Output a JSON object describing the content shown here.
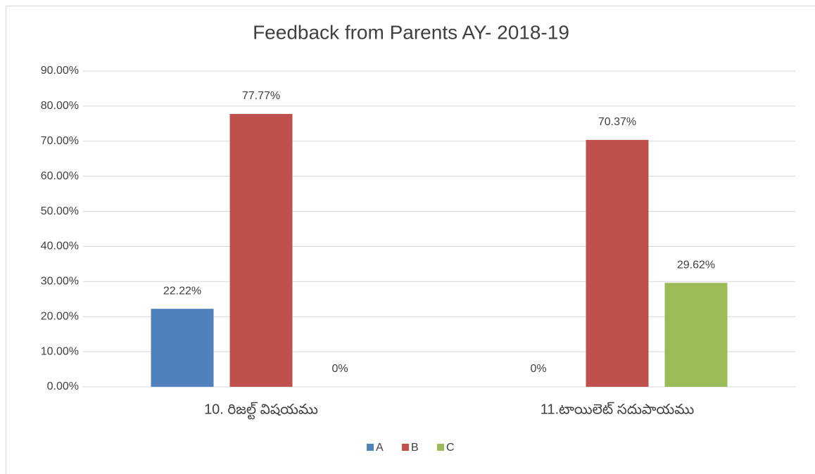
{
  "chart_data": {
    "type": "bar",
    "title": "Feedback from Parents AY- 2018-19",
    "categories": [
      "10. రిజల్ట్ విషయము",
      "11.టాయిలెట్ సదుపాయము"
    ],
    "series": [
      {
        "name": "A",
        "color": "#4f81bd",
        "values": [
          22.22,
          0
        ],
        "value_labels": [
          "22.22%",
          "0%"
        ]
      },
      {
        "name": "B",
        "color": "#c0504d",
        "values": [
          77.77,
          70.37
        ],
        "value_labels": [
          "77.77%",
          "70.37%"
        ]
      },
      {
        "name": "C",
        "color": "#9bbb59",
        "values": [
          0,
          29.62
        ],
        "value_labels": [
          "0%",
          "29.62%"
        ]
      }
    ],
    "ylim": [
      0,
      90
    ],
    "yticks": [
      {
        "value": 0,
        "label": "0.00%"
      },
      {
        "value": 10,
        "label": "10.00%"
      },
      {
        "value": 20,
        "label": "20.00%"
      },
      {
        "value": 30,
        "label": "30.00%"
      },
      {
        "value": 40,
        "label": "40.00%"
      },
      {
        "value": 50,
        "label": "50.00%"
      },
      {
        "value": 60,
        "label": "60.00%"
      },
      {
        "value": 70,
        "label": "70.00%"
      },
      {
        "value": 80,
        "label": "80.00%"
      },
      {
        "value": 90,
        "label": "90.00%"
      }
    ],
    "grid": true,
    "legend": "bottom"
  }
}
